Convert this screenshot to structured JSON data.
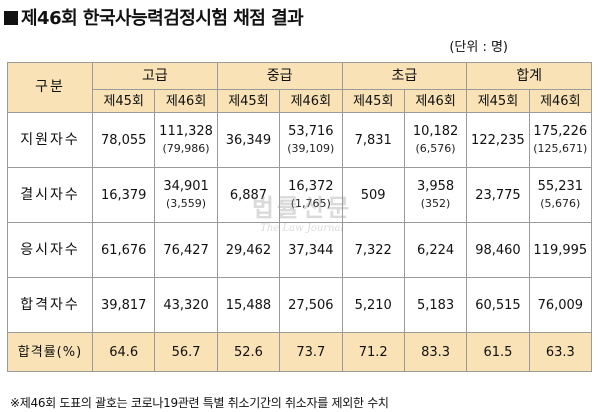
{
  "title": "제46회 한국사능력검정시험 채점 결과",
  "unit": "(단위 : 명)",
  "table": {
    "corner": "구분",
    "groups": [
      "고급",
      "중급",
      "초급",
      "합계"
    ],
    "subheaders": [
      "제45회",
      "제46회"
    ],
    "rows": [
      {
        "label": "지원자수",
        "cells": [
          {
            "v": "78,055",
            "s": ""
          },
          {
            "v": "111,328",
            "s": "(79,986)"
          },
          {
            "v": "36,349",
            "s": ""
          },
          {
            "v": "53,716",
            "s": "(39,109)"
          },
          {
            "v": "7,831",
            "s": ""
          },
          {
            "v": "10,182",
            "s": "(6,576)"
          },
          {
            "v": "122,235",
            "s": ""
          },
          {
            "v": "175,226",
            "s": "(125,671)"
          }
        ]
      },
      {
        "label": "결시자수",
        "cells": [
          {
            "v": "16,379",
            "s": ""
          },
          {
            "v": "34,901",
            "s": "(3,559)"
          },
          {
            "v": "6,887",
            "s": ""
          },
          {
            "v": "16,372",
            "s": "(1,765)"
          },
          {
            "v": "509",
            "s": ""
          },
          {
            "v": "3,958",
            "s": "(352)"
          },
          {
            "v": "23,775",
            "s": ""
          },
          {
            "v": "55,231",
            "s": "(5,676)"
          }
        ]
      },
      {
        "label": "응시자수",
        "cells": [
          {
            "v": "61,676",
            "s": ""
          },
          {
            "v": "76,427",
            "s": ""
          },
          {
            "v": "29,462",
            "s": ""
          },
          {
            "v": "37,344",
            "s": ""
          },
          {
            "v": "7,322",
            "s": ""
          },
          {
            "v": "6,224",
            "s": ""
          },
          {
            "v": "98,460",
            "s": ""
          },
          {
            "v": "119,995",
            "s": ""
          }
        ]
      },
      {
        "label": "합격자수",
        "cells": [
          {
            "v": "39,817",
            "s": ""
          },
          {
            "v": "43,320",
            "s": ""
          },
          {
            "v": "15,488",
            "s": ""
          },
          {
            "v": "27,506",
            "s": ""
          },
          {
            "v": "5,210",
            "s": ""
          },
          {
            "v": "5,183",
            "s": ""
          },
          {
            "v": "60,515",
            "s": ""
          },
          {
            "v": "76,009",
            "s": ""
          }
        ]
      }
    ],
    "rate_label": "합격률(%)",
    "rates": [
      "64.6",
      "56.7",
      "52.6",
      "73.7",
      "71.2",
      "83.3",
      "61.5",
      "63.3"
    ]
  },
  "footnote": "※제46회 도표의 괄호는 코로나19관련 특별 취소기간의 취소자를 제외한 수치",
  "watermark": {
    "mark": "법률신문",
    "sub": "The Law Journal"
  },
  "colors": {
    "header_bg": "#f9e3b6",
    "border": "#9a9a9a"
  }
}
